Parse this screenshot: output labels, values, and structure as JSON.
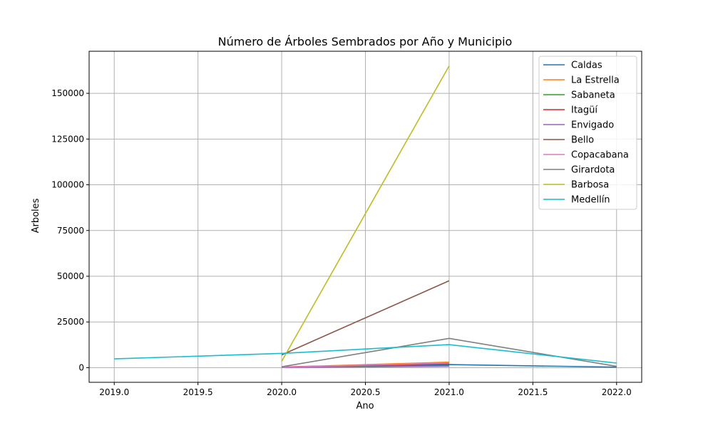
{
  "chart_data": {
    "type": "line",
    "title": "Número de Árboles Sembrados por Año y Municipio",
    "xlabel": "Ano",
    "ylabel": "Arboles",
    "xlim": [
      2018.85,
      2022.15
    ],
    "ylim": [
      -8000,
      173000
    ],
    "xticks": [
      2019.0,
      2019.5,
      2020.0,
      2020.5,
      2021.0,
      2021.5,
      2022.0
    ],
    "xtick_labels": [
      "2019.0",
      "2019.5",
      "2020.0",
      "2020.5",
      "2021.0",
      "2021.5",
      "2022.0"
    ],
    "yticks": [
      0,
      25000,
      50000,
      75000,
      100000,
      125000,
      150000
    ],
    "ytick_labels": [
      "0",
      "25000",
      "50000",
      "75000",
      "100000",
      "125000",
      "150000"
    ],
    "grid": true,
    "legend_position": "top-right",
    "series": [
      {
        "name": "Caldas",
        "color": "#1f77b4",
        "x": [
          2020,
          2021,
          2022
        ],
        "y": [
          200,
          1700,
          300
        ]
      },
      {
        "name": "La Estrella",
        "color": "#ff7f0e",
        "x": [
          2020,
          2021
        ],
        "y": [
          300,
          3000
        ]
      },
      {
        "name": "Sabaneta",
        "color": "#2ca02c",
        "x": [
          2020,
          2021
        ],
        "y": [
          200,
          1200
        ]
      },
      {
        "name": "Itagüí",
        "color": "#d62728",
        "x": [
          2020,
          2021
        ],
        "y": [
          400,
          2200
        ]
      },
      {
        "name": "Envigado",
        "color": "#9467bd",
        "x": [
          2020,
          2021
        ],
        "y": [
          100,
          800
        ]
      },
      {
        "name": "Bello",
        "color": "#8c564b",
        "x": [
          2020,
          2021
        ],
        "y": [
          7000,
          47500
        ]
      },
      {
        "name": "Copacabana",
        "color": "#e377c2",
        "x": [
          2020,
          2021
        ],
        "y": [
          300,
          2500
        ]
      },
      {
        "name": "Girardota",
        "color": "#7f7f7f",
        "x": [
          2020,
          2021,
          2022
        ],
        "y": [
          500,
          16000,
          700
        ]
      },
      {
        "name": "Barbosa",
        "color": "#bcbd22",
        "x": [
          2020,
          2021
        ],
        "y": [
          3500,
          165000
        ]
      },
      {
        "name": "Medellín",
        "color": "#17becf",
        "x": [
          2019,
          2020,
          2021,
          2022
        ],
        "y": [
          4800,
          7800,
          12600,
          2500
        ]
      }
    ]
  }
}
